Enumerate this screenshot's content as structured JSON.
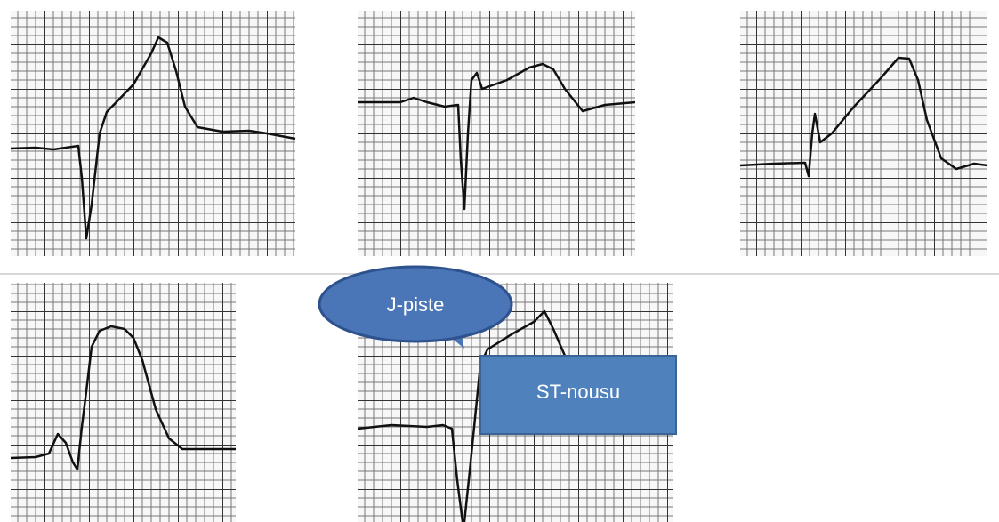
{
  "callouts": [
    {
      "label": "J-piste"
    },
    {
      "label": "ST-nousu"
    }
  ]
}
